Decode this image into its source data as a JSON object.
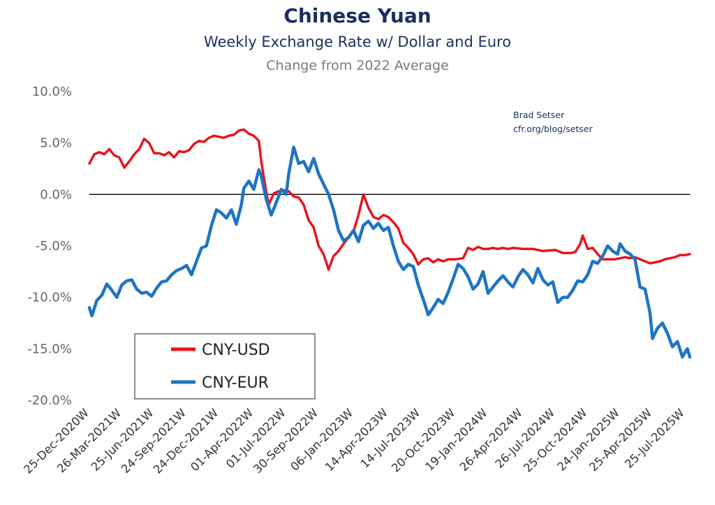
{
  "chart_data": {
    "type": "line",
    "title": "Chinese Yuan",
    "subtitle": "Weekly Exchange Rate w/ Dollar and Euro",
    "subsubtitle": "Change from 2022 Average",
    "annotation": [
      "Brad Setser",
      "cfr.org/blog/setser"
    ],
    "y_ticks": [
      "10.0%",
      "5.0%",
      "0.0%",
      "-5.0%",
      "-10.0%",
      "-15.0%",
      "-20.0%"
    ],
    "ylim": [
      -20,
      10
    ],
    "x_start": "2020-12-25",
    "x_end": "2025-08-08",
    "x_ticks": [
      {
        "label": "25-Dec-2020W",
        "date": "2020-12-25"
      },
      {
        "label": "26-Mar-2021W",
        "date": "2021-03-26"
      },
      {
        "label": "25-Jun-2021W",
        "date": "2021-06-25"
      },
      {
        "label": "24-Sep-2021W",
        "date": "2021-09-24"
      },
      {
        "label": "24-Dec-2021W",
        "date": "2021-12-24"
      },
      {
        "label": "01-Apr-2022W",
        "date": "2022-04-01"
      },
      {
        "label": "01-Jul-2022W",
        "date": "2022-07-01"
      },
      {
        "label": "30-Sep-2022W",
        "date": "2022-09-30"
      },
      {
        "label": "06-Jan-2023W",
        "date": "2023-01-06"
      },
      {
        "label": "14-Apr-2023W",
        "date": "2023-04-14"
      },
      {
        "label": "14-Jul-2023W",
        "date": "2023-07-14"
      },
      {
        "label": "20-Oct-2023W",
        "date": "2023-10-20"
      },
      {
        "label": "19-Jan-2024W",
        "date": "2024-01-19"
      },
      {
        "label": "26-Apr-2024W",
        "date": "2024-04-26"
      },
      {
        "label": "26-Jul-2024W",
        "date": "2024-07-26"
      },
      {
        "label": "25-Oct-2024W",
        "date": "2024-10-25"
      },
      {
        "label": "24-Jan-2025W",
        "date": "2025-01-24"
      },
      {
        "label": "25-Apr-2025W",
        "date": "2025-04-25"
      },
      {
        "label": "25-Jul-2025W",
        "date": "2025-07-25"
      }
    ],
    "legend": {
      "position": "bottom-left"
    },
    "series": [
      {
        "name": "CNY-USD",
        "color": "#e8141c",
        "points": [
          [
            "2020-12-25",
            3.0
          ],
          [
            "2021-01-08",
            3.9
          ],
          [
            "2021-01-22",
            4.1
          ],
          [
            "2021-02-05",
            3.9
          ],
          [
            "2021-02-19",
            4.4
          ],
          [
            "2021-03-05",
            3.8
          ],
          [
            "2021-03-19",
            3.6
          ],
          [
            "2021-04-02",
            2.6
          ],
          [
            "2021-04-16",
            3.2
          ],
          [
            "2021-04-30",
            3.9
          ],
          [
            "2021-05-14",
            4.4
          ],
          [
            "2021-05-28",
            5.4
          ],
          [
            "2021-06-11",
            5.0
          ],
          [
            "2021-06-25",
            4.0
          ],
          [
            "2021-07-09",
            4.0
          ],
          [
            "2021-07-23",
            3.8
          ],
          [
            "2021-08-06",
            4.1
          ],
          [
            "2021-08-20",
            3.6
          ],
          [
            "2021-09-03",
            4.2
          ],
          [
            "2021-09-17",
            4.1
          ],
          [
            "2021-10-01",
            4.3
          ],
          [
            "2021-10-15",
            4.9
          ],
          [
            "2021-10-29",
            5.2
          ],
          [
            "2021-11-12",
            5.1
          ],
          [
            "2021-11-26",
            5.5
          ],
          [
            "2021-12-10",
            5.7
          ],
          [
            "2021-12-24",
            5.6
          ],
          [
            "2022-01-07",
            5.5
          ],
          [
            "2022-01-21",
            5.7
          ],
          [
            "2022-02-04",
            5.8
          ],
          [
            "2022-02-18",
            6.2
          ],
          [
            "2022-03-04",
            6.3
          ],
          [
            "2022-03-18",
            5.9
          ],
          [
            "2022-04-01",
            5.7
          ],
          [
            "2022-04-15",
            5.2
          ],
          [
            "2022-04-22",
            3.2
          ],
          [
            "2022-05-06",
            0.2
          ],
          [
            "2022-05-13",
            -1.0
          ],
          [
            "2022-05-27",
            0.1
          ],
          [
            "2022-06-10",
            0.3
          ],
          [
            "2022-06-24",
            0.4
          ],
          [
            "2022-07-08",
            0.3
          ],
          [
            "2022-07-22",
            -0.2
          ],
          [
            "2022-08-05",
            -0.3
          ],
          [
            "2022-08-19",
            -1.0
          ],
          [
            "2022-09-02",
            -2.5
          ],
          [
            "2022-09-16",
            -3.2
          ],
          [
            "2022-09-30",
            -5.0
          ],
          [
            "2022-10-14",
            -5.8
          ],
          [
            "2022-10-28",
            -7.3
          ],
          [
            "2022-11-11",
            -6.0
          ],
          [
            "2022-11-25",
            -5.5
          ],
          [
            "2022-12-09",
            -4.8
          ],
          [
            "2022-12-23",
            -4.2
          ],
          [
            "2023-01-06",
            -3.6
          ],
          [
            "2023-01-20",
            -2.0
          ],
          [
            "2023-02-03",
            0.0
          ],
          [
            "2023-02-17",
            -1.3
          ],
          [
            "2023-03-03",
            -2.2
          ],
          [
            "2023-03-17",
            -2.4
          ],
          [
            "2023-03-31",
            -2.0
          ],
          [
            "2023-04-14",
            -2.2
          ],
          [
            "2023-04-28",
            -2.7
          ],
          [
            "2023-05-12",
            -3.3
          ],
          [
            "2023-05-26",
            -4.7
          ],
          [
            "2023-06-09",
            -5.2
          ],
          [
            "2023-06-23",
            -5.8
          ],
          [
            "2023-07-07",
            -6.8
          ],
          [
            "2023-07-21",
            -6.3
          ],
          [
            "2023-08-04",
            -6.2
          ],
          [
            "2023-08-18",
            -6.6
          ],
          [
            "2023-09-01",
            -6.3
          ],
          [
            "2023-09-15",
            -6.5
          ],
          [
            "2023-09-29",
            -6.3
          ],
          [
            "2023-10-20",
            -6.3
          ],
          [
            "2023-11-10",
            -6.2
          ],
          [
            "2023-11-24",
            -5.2
          ],
          [
            "2023-12-08",
            -5.4
          ],
          [
            "2023-12-22",
            -5.1
          ],
          [
            "2024-01-05",
            -5.3
          ],
          [
            "2024-01-19",
            -5.3
          ],
          [
            "2024-02-02",
            -5.2
          ],
          [
            "2024-02-16",
            -5.3
          ],
          [
            "2024-03-01",
            -5.2
          ],
          [
            "2024-03-15",
            -5.3
          ],
          [
            "2024-03-29",
            -5.2
          ],
          [
            "2024-04-26",
            -5.3
          ],
          [
            "2024-05-24",
            -5.3
          ],
          [
            "2024-06-21",
            -5.5
          ],
          [
            "2024-07-26",
            -5.4
          ],
          [
            "2024-08-16",
            -5.7
          ],
          [
            "2024-09-06",
            -5.7
          ],
          [
            "2024-09-20",
            -5.6
          ],
          [
            "2024-10-04",
            -4.8
          ],
          [
            "2024-10-11",
            -4.0
          ],
          [
            "2024-10-25",
            -5.3
          ],
          [
            "2024-11-08",
            -5.2
          ],
          [
            "2024-11-22",
            -5.8
          ],
          [
            "2024-12-06",
            -6.3
          ],
          [
            "2024-12-20",
            -6.3
          ],
          [
            "2025-01-10",
            -6.3
          ],
          [
            "2025-01-24",
            -6.2
          ],
          [
            "2025-02-07",
            -6.1
          ],
          [
            "2025-02-21",
            -6.2
          ],
          [
            "2025-03-07",
            -6.1
          ],
          [
            "2025-03-21",
            -6.3
          ],
          [
            "2025-04-04",
            -6.5
          ],
          [
            "2025-04-18",
            -6.7
          ],
          [
            "2025-05-02",
            -6.6
          ],
          [
            "2025-05-16",
            -6.5
          ],
          [
            "2025-05-30",
            -6.3
          ],
          [
            "2025-06-13",
            -6.2
          ],
          [
            "2025-06-27",
            -6.1
          ],
          [
            "2025-07-11",
            -5.9
          ],
          [
            "2025-07-25",
            -5.9
          ],
          [
            "2025-08-08",
            -5.8
          ]
        ]
      },
      {
        "name": "CNY-EUR",
        "color": "#1f74c4",
        "points": [
          [
            "2020-12-25",
            -11.0
          ],
          [
            "2021-01-01",
            -11.8
          ],
          [
            "2021-01-15",
            -10.3
          ],
          [
            "2021-01-29",
            -9.8
          ],
          [
            "2021-02-12",
            -8.7
          ],
          [
            "2021-02-26",
            -9.3
          ],
          [
            "2021-03-12",
            -10.0
          ],
          [
            "2021-03-26",
            -8.8
          ],
          [
            "2021-04-09",
            -8.4
          ],
          [
            "2021-04-23",
            -8.3
          ],
          [
            "2021-05-07",
            -9.2
          ],
          [
            "2021-05-21",
            -9.6
          ],
          [
            "2021-06-04",
            -9.5
          ],
          [
            "2021-06-18",
            -9.9
          ],
          [
            "2021-07-02",
            -9.1
          ],
          [
            "2021-07-16",
            -8.5
          ],
          [
            "2021-07-30",
            -8.4
          ],
          [
            "2021-08-13",
            -7.8
          ],
          [
            "2021-08-27",
            -7.4
          ],
          [
            "2021-09-10",
            -7.2
          ],
          [
            "2021-09-24",
            -6.9
          ],
          [
            "2021-10-08",
            -7.8
          ],
          [
            "2021-10-22",
            -6.5
          ],
          [
            "2021-11-05",
            -5.2
          ],
          [
            "2021-11-19",
            -5.0
          ],
          [
            "2021-12-03",
            -3.0
          ],
          [
            "2021-12-17",
            -1.5
          ],
          [
            "2021-12-31",
            -1.8
          ],
          [
            "2022-01-14",
            -2.3
          ],
          [
            "2022-01-28",
            -1.5
          ],
          [
            "2022-02-11",
            -2.9
          ],
          [
            "2022-02-25",
            -1.0
          ],
          [
            "2022-03-04",
            0.6
          ],
          [
            "2022-03-18",
            1.3
          ],
          [
            "2022-04-01",
            0.5
          ],
          [
            "2022-04-15",
            2.4
          ],
          [
            "2022-04-22",
            1.8
          ],
          [
            "2022-05-06",
            -0.5
          ],
          [
            "2022-05-20",
            -2.0
          ],
          [
            "2022-06-03",
            -0.8
          ],
          [
            "2022-06-17",
            0.5
          ],
          [
            "2022-07-01",
            0.0
          ],
          [
            "2022-07-08",
            2.0
          ],
          [
            "2022-07-22",
            4.6
          ],
          [
            "2022-08-05",
            3.0
          ],
          [
            "2022-08-19",
            3.2
          ],
          [
            "2022-09-02",
            2.2
          ],
          [
            "2022-09-16",
            3.5
          ],
          [
            "2022-09-30",
            2.0
          ],
          [
            "2022-10-14",
            1.0
          ],
          [
            "2022-10-28",
            0.0
          ],
          [
            "2022-11-11",
            -1.5
          ],
          [
            "2022-11-25",
            -3.5
          ],
          [
            "2022-12-09",
            -4.5
          ],
          [
            "2022-12-23",
            -4.2
          ],
          [
            "2023-01-06",
            -3.5
          ],
          [
            "2023-01-20",
            -4.6
          ],
          [
            "2023-02-03",
            -3.0
          ],
          [
            "2023-02-17",
            -2.6
          ],
          [
            "2023-03-03",
            -3.3
          ],
          [
            "2023-03-17",
            -2.8
          ],
          [
            "2023-03-31",
            -3.5
          ],
          [
            "2023-04-14",
            -3.2
          ],
          [
            "2023-04-28",
            -5.0
          ],
          [
            "2023-05-12",
            -6.5
          ],
          [
            "2023-05-26",
            -7.3
          ],
          [
            "2023-06-09",
            -6.8
          ],
          [
            "2023-06-23",
            -7.0
          ],
          [
            "2023-07-07",
            -8.8
          ],
          [
            "2023-07-21",
            -10.2
          ],
          [
            "2023-08-04",
            -11.7
          ],
          [
            "2023-08-18",
            -11.0
          ],
          [
            "2023-09-01",
            -10.2
          ],
          [
            "2023-09-15",
            -10.6
          ],
          [
            "2023-09-29",
            -9.5
          ],
          [
            "2023-10-13",
            -8.2
          ],
          [
            "2023-10-27",
            -6.8
          ],
          [
            "2023-11-10",
            -7.2
          ],
          [
            "2023-11-24",
            -8.0
          ],
          [
            "2023-12-08",
            -9.2
          ],
          [
            "2023-12-22",
            -8.7
          ],
          [
            "2024-01-05",
            -7.5
          ],
          [
            "2024-01-19",
            -9.6
          ],
          [
            "2024-02-02",
            -9.0
          ],
          [
            "2024-02-16",
            -8.4
          ],
          [
            "2024-03-01",
            -7.9
          ],
          [
            "2024-03-15",
            -8.5
          ],
          [
            "2024-03-29",
            -9.0
          ],
          [
            "2024-04-12",
            -8.0
          ],
          [
            "2024-04-26",
            -7.3
          ],
          [
            "2024-05-10",
            -7.8
          ],
          [
            "2024-05-24",
            -8.6
          ],
          [
            "2024-06-07",
            -7.2
          ],
          [
            "2024-06-21",
            -8.3
          ],
          [
            "2024-07-05",
            -8.8
          ],
          [
            "2024-07-19",
            -8.5
          ],
          [
            "2024-08-02",
            -10.5
          ],
          [
            "2024-08-16",
            -10.0
          ],
          [
            "2024-08-30",
            -10.0
          ],
          [
            "2024-09-13",
            -9.3
          ],
          [
            "2024-09-27",
            -8.4
          ],
          [
            "2024-10-11",
            -8.5
          ],
          [
            "2024-10-25",
            -7.8
          ],
          [
            "2024-11-08",
            -6.5
          ],
          [
            "2024-11-22",
            -6.7
          ],
          [
            "2024-12-06",
            -6.0
          ],
          [
            "2024-12-20",
            -5.0
          ],
          [
            "2025-01-03",
            -5.5
          ],
          [
            "2025-01-17",
            -5.8
          ],
          [
            "2025-01-24",
            -4.8
          ],
          [
            "2025-02-07",
            -5.5
          ],
          [
            "2025-02-21",
            -5.8
          ],
          [
            "2025-03-07",
            -6.3
          ],
          [
            "2025-03-21",
            -9.0
          ],
          [
            "2025-04-04",
            -9.2
          ],
          [
            "2025-04-18",
            -11.5
          ],
          [
            "2025-04-25",
            -14.0
          ],
          [
            "2025-05-09",
            -13.0
          ],
          [
            "2025-05-23",
            -12.5
          ],
          [
            "2025-06-06",
            -13.5
          ],
          [
            "2025-06-20",
            -14.8
          ],
          [
            "2025-07-04",
            -14.3
          ],
          [
            "2025-07-18",
            -15.8
          ],
          [
            "2025-08-01",
            -15.0
          ],
          [
            "2025-08-08",
            -15.8
          ]
        ]
      }
    ]
  }
}
